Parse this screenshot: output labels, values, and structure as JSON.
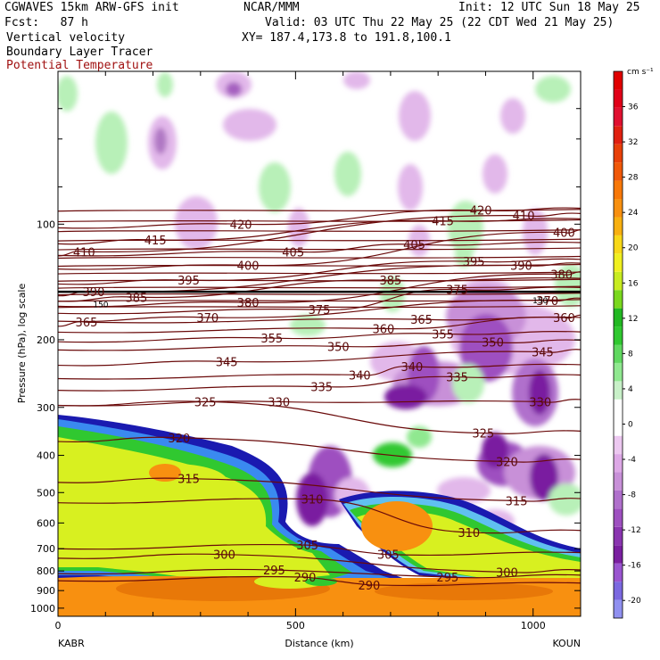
{
  "header": {
    "model": "CGWAVES 15km ARW-GFS init",
    "org": "NCAR/MMM",
    "init": "Init: 12 UTC Sun 18 May 25",
    "fcst": "Fcst:   87 h",
    "valid": "Valid: 03 UTC Thu 22 May 25 (22 CDT Wed 21 May 25)",
    "field1": "Vertical velocity",
    "xy": "XY= 187.4,173.8 to 191.8,100.1",
    "field2": "Boundary Layer Tracer",
    "field3": "Potential Temperature"
  },
  "chart_data": {
    "type": "heatmap",
    "xlabel": "Distance (km)",
    "ylabel": "Pressure (hPa), log scale",
    "x_range": [
      0,
      1100
    ],
    "x_ticks": [
      0,
      500,
      1000
    ],
    "y_ticks": [
      100,
      200,
      300,
      400,
      500,
      600,
      700,
      800,
      900,
      1000
    ],
    "y_range_hpa": [
      1050,
      40
    ],
    "y_scale": "log",
    "left_endpoint": "KABR",
    "right_endpoint": "KOUN",
    "colorbar": {
      "unit": "cm s⁻¹",
      "levels": [
        -22,
        -20,
        -18,
        -16,
        -14,
        -12,
        -10,
        -8,
        -6,
        -4,
        -2,
        0,
        2,
        4,
        6,
        8,
        10,
        12,
        14,
        16,
        18,
        20,
        22,
        24,
        26,
        28,
        30,
        32,
        34,
        36,
        38,
        40
      ],
      "labels": [
        -20,
        -16,
        -12,
        -8,
        -4,
        0,
        4,
        8,
        12,
        16,
        20,
        24,
        28,
        32,
        36
      ],
      "colors": [
        "#9090f0",
        "#7b68e0",
        "#9a55d0",
        "#7a1fa0",
        "#8a35b0",
        "#9e50c0",
        "#b070cc",
        "#c890d8",
        "#dda8e6",
        "#ecc8f0",
        "#ffffff",
        "#ffffff",
        "#c8f0c8",
        "#90e890",
        "#60d860",
        "#30c830",
        "#22b822",
        "#7ad81e",
        "#c8ec20",
        "#f0f020",
        "#f8d818",
        "#f8b010",
        "#f89010",
        "#f87808",
        "#f05808",
        "#e84008",
        "#e02010",
        "#e01030",
        "#e00018",
        "#e00000"
      ]
    },
    "isentrope_labels": [
      {
        "text": "415",
        "x": 205,
        "p": 110
      },
      {
        "text": "420",
        "x": 385,
        "p": 100
      },
      {
        "text": "410",
        "x": 55,
        "p": 118
      },
      {
        "text": "405",
        "x": 495,
        "p": 118
      },
      {
        "text": "405",
        "x": 750,
        "p": 113
      },
      {
        "text": "415",
        "x": 810,
        "p": 98
      },
      {
        "text": "420",
        "x": 890,
        "p": 92
      },
      {
        "text": "410",
        "x": 980,
        "p": 95
      },
      {
        "text": "400",
        "x": 1065,
        "p": 105
      },
      {
        "text": "390",
        "x": 75,
        "p": 150
      },
      {
        "text": "385",
        "x": 165,
        "p": 155
      },
      {
        "text": "395",
        "x": 275,
        "p": 140
      },
      {
        "text": "400",
        "x": 400,
        "p": 128
      },
      {
        "text": "385",
        "x": 700,
        "p": 140
      },
      {
        "text": "395",
        "x": 875,
        "p": 125
      },
      {
        "text": "390",
        "x": 975,
        "p": 128
      },
      {
        "text": "380",
        "x": 1060,
        "p": 135
      },
      {
        "text": "375",
        "x": 840,
        "p": 148
      },
      {
        "text": "370",
        "x": 1030,
        "p": 158
      },
      {
        "text": "380",
        "x": 400,
        "p": 160
      },
      {
        "text": "375",
        "x": 550,
        "p": 167
      },
      {
        "text": "365",
        "x": 60,
        "p": 180
      },
      {
        "text": "370",
        "x": 315,
        "p": 175
      },
      {
        "text": "360",
        "x": 685,
        "p": 187
      },
      {
        "text": "365",
        "x": 765,
        "p": 177
      },
      {
        "text": "360",
        "x": 1065,
        "p": 175
      },
      {
        "text": "355",
        "x": 450,
        "p": 198
      },
      {
        "text": "350",
        "x": 590,
        "p": 208
      },
      {
        "text": "355",
        "x": 810,
        "p": 193
      },
      {
        "text": "350",
        "x": 915,
        "p": 203
      },
      {
        "text": "345",
        "x": 355,
        "p": 228
      },
      {
        "text": "345",
        "x": 1020,
        "p": 215
      },
      {
        "text": "340",
        "x": 635,
        "p": 247
      },
      {
        "text": "340",
        "x": 745,
        "p": 235
      },
      {
        "text": "335",
        "x": 555,
        "p": 265
      },
      {
        "text": "335",
        "x": 840,
        "p": 250
      },
      {
        "text": "330",
        "x": 465,
        "p": 290
      },
      {
        "text": "330",
        "x": 1015,
        "p": 290
      },
      {
        "text": "325",
        "x": 310,
        "p": 290
      },
      {
        "text": "325",
        "x": 895,
        "p": 350
      },
      {
        "text": "320",
        "x": 255,
        "p": 360
      },
      {
        "text": "320",
        "x": 945,
        "p": 415
      },
      {
        "text": "315",
        "x": 275,
        "p": 460
      },
      {
        "text": "315",
        "x": 965,
        "p": 525
      },
      {
        "text": "310",
        "x": 535,
        "p": 520
      },
      {
        "text": "310",
        "x": 865,
        "p": 635
      },
      {
        "text": "305",
        "x": 525,
        "p": 685
      },
      {
        "text": "305",
        "x": 695,
        "p": 725
      },
      {
        "text": "300",
        "x": 350,
        "p": 725
      },
      {
        "text": "300",
        "x": 945,
        "p": 805
      },
      {
        "text": "295",
        "x": 455,
        "p": 795
      },
      {
        "text": "295",
        "x": 820,
        "p": 830
      },
      {
        "text": "290",
        "x": 520,
        "p": 830
      },
      {
        "text": "290",
        "x": 655,
        "p": 870
      }
    ],
    "minor_labels": [
      {
        "text": "150",
        "x": 90,
        "p": 162
      },
      {
        "text": "150",
        "x": 1015,
        "p": 158
      }
    ],
    "grid": false,
    "legend": "colorbar-right"
  }
}
